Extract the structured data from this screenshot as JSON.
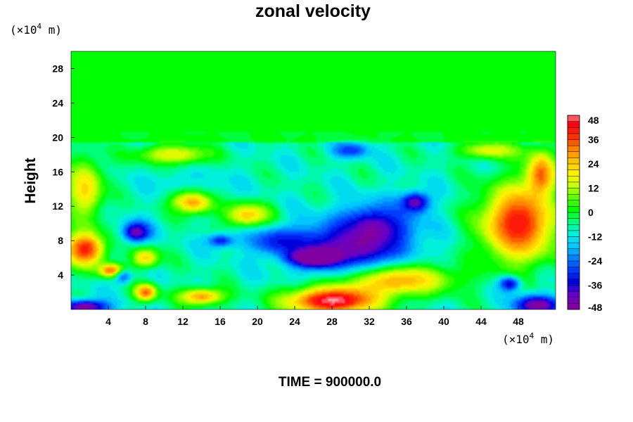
{
  "chart_data": {
    "type": "heatmap",
    "title": "zonal velocity",
    "ylabel": "Height",
    "xlabel": "",
    "y_unit": {
      "prefix": "(×10",
      "exponent": "4",
      "suffix": " m)"
    },
    "x_unit": {
      "prefix": "(×10",
      "exponent": "4",
      "suffix": " m)"
    },
    "xlim": [
      0,
      52
    ],
    "ylim": [
      0,
      30
    ],
    "x_ticks": [
      4,
      8,
      12,
      16,
      20,
      24,
      28,
      32,
      36,
      40,
      44,
      48
    ],
    "y_ticks": [
      4,
      8,
      12,
      16,
      20,
      24,
      28
    ],
    "colorbar": {
      "min": -48,
      "max": 48,
      "ticks": [
        48,
        36,
        24,
        12,
        0,
        -12,
        -24,
        -36,
        -48
      ],
      "levels": [
        -48,
        -45,
        -42,
        -39,
        -36,
        -33,
        -30,
        -27,
        -24,
        -21,
        -18,
        -15,
        -12,
        -9,
        -6,
        -3,
        0,
        3,
        6,
        9,
        12,
        15,
        18,
        21,
        24,
        27,
        30,
        33,
        36,
        39,
        42,
        45,
        48
      ]
    },
    "features": [
      {
        "x": 30,
        "y": 7,
        "value": -40,
        "rx": 6,
        "ry": 3.2
      },
      {
        "x": 26,
        "y": 6,
        "value": -46,
        "rx": 2.5,
        "ry": 1.0
      },
      {
        "x": 33,
        "y": 10,
        "value": -30,
        "rx": 4,
        "ry": 2.6
      },
      {
        "x": 22,
        "y": 8,
        "value": -28,
        "rx": 3.5,
        "ry": 1.6
      },
      {
        "x": 37,
        "y": 12.5,
        "value": -38,
        "rx": 1.6,
        "ry": 1.2
      },
      {
        "x": 30,
        "y": 18.5,
        "value": -30,
        "rx": 2,
        "ry": 0.9
      },
      {
        "x": 7,
        "y": 9,
        "value": -44,
        "rx": 1.5,
        "ry": 1.2
      },
      {
        "x": 16,
        "y": 8,
        "value": -30,
        "rx": 1.5,
        "ry": 0.8
      },
      {
        "x": 47,
        "y": 3,
        "value": -40,
        "rx": 1.2,
        "ry": 0.9
      },
      {
        "x": 5.5,
        "y": 4,
        "value": -35,
        "rx": 1.0,
        "ry": 0.9
      },
      {
        "x": 13,
        "y": 14,
        "value": -14,
        "rx": 5,
        "ry": 2.5
      },
      {
        "x": 50,
        "y": 0.5,
        "value": -48,
        "rx": 2.5,
        "ry": 1.2
      },
      {
        "x": 1.5,
        "y": 0.3,
        "value": -48,
        "rx": 2.5,
        "ry": 0.8
      },
      {
        "x": 28,
        "y": 1,
        "value": 48,
        "rx": 5,
        "ry": 1.6
      },
      {
        "x": 35,
        "y": 3.5,
        "value": 30,
        "rx": 6,
        "ry": 1.8
      },
      {
        "x": 48,
        "y": 10,
        "value": 42,
        "rx": 4,
        "ry": 4.5
      },
      {
        "x": 1.5,
        "y": 7,
        "value": 40,
        "rx": 2.2,
        "ry": 2.0
      },
      {
        "x": 4.5,
        "y": 4.5,
        "value": 36,
        "rx": 1.4,
        "ry": 0.8
      },
      {
        "x": 8,
        "y": 2,
        "value": 34,
        "rx": 1.2,
        "ry": 1.0
      },
      {
        "x": 13,
        "y": 12.5,
        "value": 28,
        "rx": 2.5,
        "ry": 1.4
      },
      {
        "x": 19,
        "y": 11,
        "value": 24,
        "rx": 2.5,
        "ry": 1.4
      },
      {
        "x": 1.5,
        "y": 14,
        "value": 22,
        "rx": 2,
        "ry": 3.5
      },
      {
        "x": 50.5,
        "y": 16,
        "value": 28,
        "rx": 1.6,
        "ry": 2.5
      },
      {
        "x": 14,
        "y": 1.5,
        "value": 28,
        "rx": 2.5,
        "ry": 1.0
      },
      {
        "x": 11,
        "y": 18,
        "value": 18,
        "rx": 4,
        "ry": 1.2
      },
      {
        "x": 45,
        "y": 18.5,
        "value": 16,
        "rx": 3.5,
        "ry": 1.0
      },
      {
        "x": 8,
        "y": 6,
        "value": 22,
        "rx": 1.5,
        "ry": 1.2
      }
    ],
    "colorbar_placement": "right",
    "grid": false
  },
  "footer": {
    "time_label": "TIME = 900000.0"
  }
}
